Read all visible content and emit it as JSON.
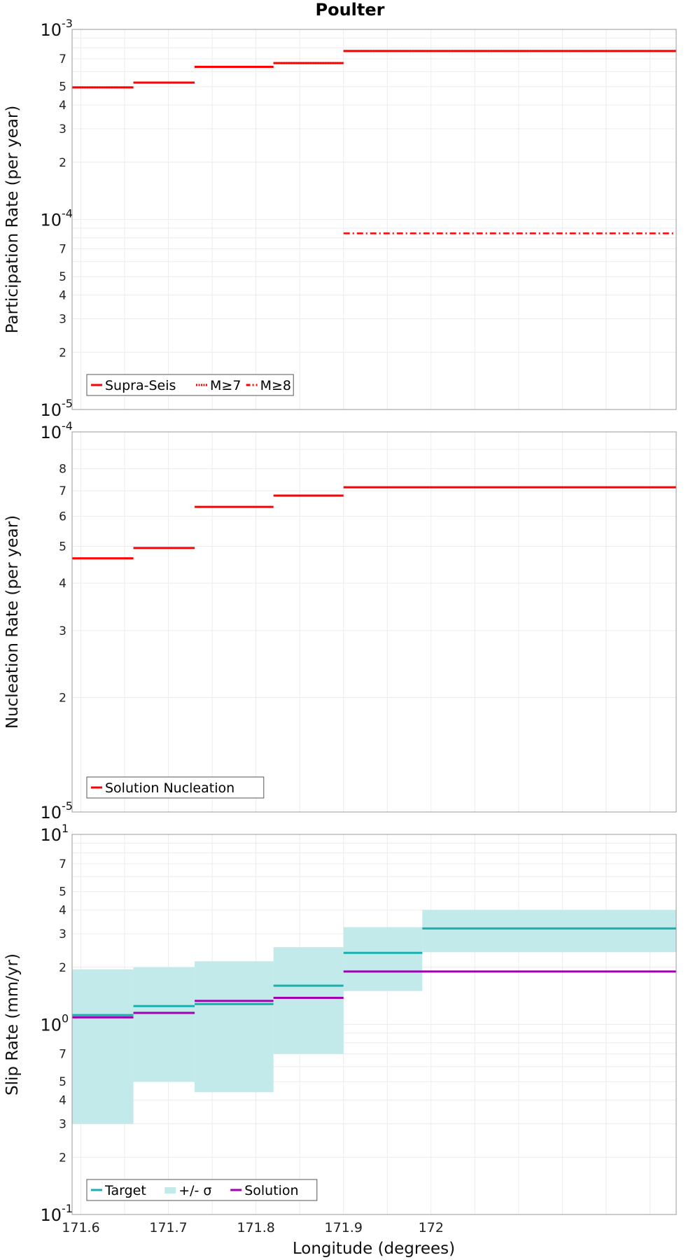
{
  "title": "Poulter",
  "xlabel": "Longitude (degrees)",
  "x_ticks": [
    "171.6",
    "171.7",
    "171.8",
    "171.9",
    "172"
  ],
  "colors": {
    "red": "#ff0000",
    "teal": "#1ab0b0",
    "band": "#c2eaea",
    "purple": "#a000b0"
  },
  "chart_data": [
    {
      "type": "line",
      "panel": "participation",
      "ylabel": "Participation Rate (per year)",
      "yscale": "log",
      "ylim": [
        1e-05,
        0.001
      ],
      "xlim": [
        171.59,
        172.28
      ],
      "y_decade_labels": [
        {
          "base": "10",
          "exp": "-5",
          "value": 1e-05
        },
        {
          "base": "10",
          "exp": "-4",
          "value": 0.0001
        },
        {
          "base": "10",
          "exp": "-3",
          "value": 0.001
        }
      ],
      "y_minor_labels": [
        "2",
        "3",
        "4",
        "5",
        "7"
      ],
      "legend": [
        "Supra-Seis",
        "M≥7",
        "M≥8"
      ],
      "series": [
        {
          "name": "Supra-Seis",
          "style": "solid",
          "segments": [
            {
              "x0": 171.59,
              "x1": 171.66,
              "y": 0.000495
            },
            {
              "x0": 171.66,
              "x1": 171.73,
              "y": 0.000525
            },
            {
              "x0": 171.73,
              "x1": 171.82,
              "y": 0.000635
            },
            {
              "x0": 171.82,
              "x1": 171.9,
              "y": 0.000665
            },
            {
              "x0": 171.9,
              "x1": 172.28,
              "y": 0.00077
            }
          ]
        },
        {
          "name": "M≥7",
          "style": "dotted",
          "segments": [
            {
              "x0": 171.59,
              "x1": 171.66,
              "y": 0.000495
            },
            {
              "x0": 171.66,
              "x1": 171.73,
              "y": 0.000525
            },
            {
              "x0": 171.73,
              "x1": 171.82,
              "y": 0.000635
            },
            {
              "x0": 171.82,
              "x1": 171.9,
              "y": 0.000665
            },
            {
              "x0": 171.9,
              "x1": 172.28,
              "y": 0.00077
            }
          ]
        },
        {
          "name": "M≥8",
          "style": "dashdot",
          "segments": [
            {
              "x0": 171.9,
              "x1": 172.28,
              "y": 8.45e-05
            }
          ]
        }
      ]
    },
    {
      "type": "line",
      "panel": "nucleation",
      "ylabel": "Nucleation Rate (per year)",
      "yscale": "log",
      "ylim": [
        1e-05,
        0.0001
      ],
      "xlim": [
        171.59,
        172.28
      ],
      "y_decade_labels": [
        {
          "base": "10",
          "exp": "-5",
          "value": 1e-05
        },
        {
          "base": "10",
          "exp": "-4",
          "value": 0.0001
        }
      ],
      "y_minor_labels": [
        "2",
        "3",
        "4",
        "5",
        "6",
        "7",
        "8"
      ],
      "legend": [
        "Solution Nucleation"
      ],
      "series": [
        {
          "name": "Solution Nucleation",
          "style": "solid",
          "segments": [
            {
              "x0": 171.59,
              "x1": 171.66,
              "y": 4.65e-05
            },
            {
              "x0": 171.66,
              "x1": 171.73,
              "y": 4.95e-05
            },
            {
              "x0": 171.73,
              "x1": 171.82,
              "y": 6.35e-05
            },
            {
              "x0": 171.82,
              "x1": 171.9,
              "y": 6.8e-05
            },
            {
              "x0": 171.9,
              "x1": 172.28,
              "y": 7.15e-05
            }
          ]
        }
      ]
    },
    {
      "type": "line",
      "panel": "slip",
      "ylabel": "Slip Rate (mm/yr)",
      "yscale": "log",
      "ylim": [
        0.1,
        10
      ],
      "xlim": [
        171.59,
        172.28
      ],
      "y_decade_labels": [
        {
          "base": "10",
          "exp": "-1",
          "value": 0.1
        },
        {
          "base": "10",
          "exp": "0",
          "value": 1
        },
        {
          "base": "10",
          "exp": "1",
          "value": 10
        }
      ],
      "y_minor_labels": [
        "2",
        "3",
        "4",
        "5",
        "7"
      ],
      "legend": [
        "Target",
        "+/- σ",
        "Solution"
      ],
      "band": [
        {
          "x0": 171.59,
          "x1": 171.66,
          "lo": 0.3,
          "hi": 1.95
        },
        {
          "x0": 171.66,
          "x1": 171.73,
          "lo": 0.5,
          "hi": 2.0
        },
        {
          "x0": 171.73,
          "x1": 171.82,
          "lo": 0.44,
          "hi": 2.15
        },
        {
          "x0": 171.82,
          "x1": 171.9,
          "lo": 0.7,
          "hi": 2.55
        },
        {
          "x0": 171.9,
          "x1": 171.99,
          "lo": 1.5,
          "hi": 3.25
        },
        {
          "x0": 171.99,
          "x1": 172.28,
          "lo": 2.4,
          "hi": 4.0
        }
      ],
      "series": [
        {
          "name": "Target",
          "style": "solid",
          "segments": [
            {
              "x0": 171.59,
              "x1": 171.66,
              "y": 1.12
            },
            {
              "x0": 171.66,
              "x1": 171.73,
              "y": 1.25
            },
            {
              "x0": 171.73,
              "x1": 171.82,
              "y": 1.28
            },
            {
              "x0": 171.82,
              "x1": 171.9,
              "y": 1.6
            },
            {
              "x0": 171.9,
              "x1": 171.99,
              "y": 2.38
            },
            {
              "x0": 171.99,
              "x1": 172.28,
              "y": 3.2
            }
          ]
        },
        {
          "name": "Solution",
          "style": "solid",
          "segments": [
            {
              "x0": 171.59,
              "x1": 171.66,
              "y": 1.09
            },
            {
              "x0": 171.66,
              "x1": 171.73,
              "y": 1.15
            },
            {
              "x0": 171.73,
              "x1": 171.82,
              "y": 1.33
            },
            {
              "x0": 171.82,
              "x1": 171.9,
              "y": 1.38
            },
            {
              "x0": 171.9,
              "x1": 172.28,
              "y": 1.9
            }
          ]
        }
      ]
    }
  ]
}
